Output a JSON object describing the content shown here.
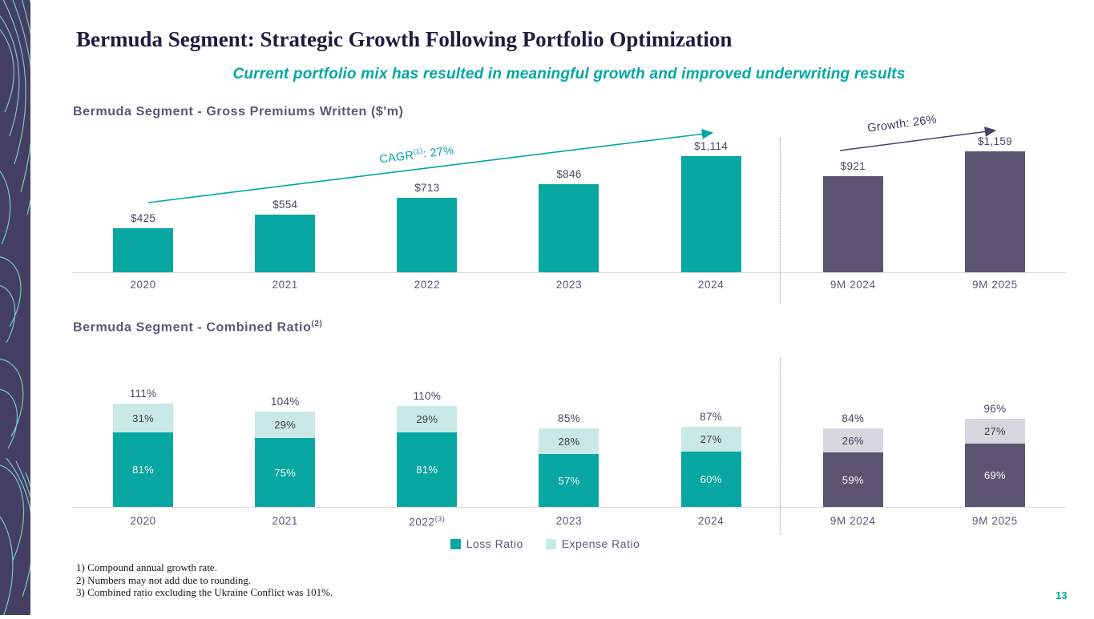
{
  "slide": {
    "title": "Bermuda Segment: Strategic Growth Following Portfolio Optimization",
    "subtitle": "Current portfolio mix has resulted in meaningful growth and improved underwriting results",
    "page_number": "13"
  },
  "colors": {
    "teal": "#08a7a1",
    "teal_light": "#c9e9e6",
    "purple": "#5b5470",
    "purple_light": "#d7d6df"
  },
  "gpw_chart": {
    "heading": "Bermuda Segment - Gross Premiums Written ($'m)",
    "cagr_prefix": "CAGR",
    "cagr_sup": "(1)",
    "cagr_suffix": ": 27%",
    "growth_label": "Growth: 26%"
  },
  "combined_chart": {
    "heading": "Bermuda Segment - Combined Ratio",
    "heading_sup": "(2)"
  },
  "legend": {
    "loss": "Loss Ratio",
    "expense": "Expense Ratio"
  },
  "footnotes": [
    "1)  Compound annual growth rate.",
    "2)  Numbers may not add due to rounding.",
    "3)  Combined ratio excluding the Ukraine Conflict was 101%."
  ],
  "chart_data": [
    {
      "type": "bar",
      "title": "Bermuda Segment - Gross Premiums Written ($'m)",
      "categories": [
        "2020",
        "2021",
        "2022",
        "2023",
        "2024",
        "9M 2024",
        "9M 2025"
      ],
      "values": [
        425,
        554,
        713,
        846,
        1114,
        921,
        1159
      ],
      "labels": [
        "$425",
        "$554",
        "$713",
        "$846",
        "$1,114",
        "$921",
        "$1,159"
      ],
      "groups": [
        "annual",
        "annual",
        "annual",
        "annual",
        "annual",
        "nine_month",
        "nine_month"
      ],
      "annotations": [
        {
          "text": "CAGR(1): 27%",
          "applies_to": "2020-2024"
        },
        {
          "text": "Growth: 26%",
          "applies_to": "9M 2024-9M 2025"
        }
      ],
      "ylim": [
        0,
        1250
      ],
      "grid": false
    },
    {
      "type": "bar",
      "stacked": true,
      "title": "Bermuda Segment - Combined Ratio(2)",
      "categories": [
        "2020",
        "2021",
        "2022",
        "2023",
        "2024",
        "9M 2024",
        "9M 2025"
      ],
      "category_sups": [
        "",
        "",
        "(3)",
        "",
        "",
        "",
        ""
      ],
      "series": [
        {
          "name": "Loss Ratio",
          "values": [
            81,
            75,
            81,
            57,
            60,
            59,
            69
          ]
        },
        {
          "name": "Expense Ratio",
          "values": [
            31,
            29,
            29,
            28,
            27,
            26,
            27
          ]
        }
      ],
      "totals": [
        "111%",
        "104%",
        "110%",
        "85%",
        "87%",
        "84%",
        "96%"
      ],
      "groups": [
        "annual",
        "annual",
        "annual",
        "annual",
        "annual",
        "nine_month",
        "nine_month"
      ],
      "legend_position": "bottom",
      "ylim": [
        0,
        120
      ],
      "grid": false
    }
  ]
}
